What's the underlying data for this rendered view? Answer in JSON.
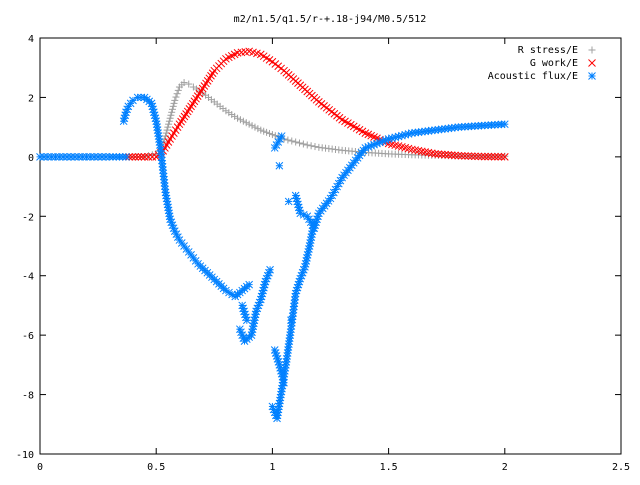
{
  "chart_data": {
    "type": "scatter",
    "title": "m2/n1.5/q1.5/r-+.18-j94/M0.5/512",
    "xlim": [
      0,
      2.5
    ],
    "ylim": [
      -10,
      4
    ],
    "x_ticks": [
      "0",
      "0.5",
      "1",
      "1.5",
      "2",
      "2.5"
    ],
    "y_ticks": [
      "4",
      "2",
      "0",
      "-2",
      "-4",
      "-6",
      "-8",
      "-10"
    ],
    "grid": false,
    "legend_position": "top-right",
    "series": [
      {
        "name": "R stress/E",
        "marker": "plus",
        "color": "#a0a0a0",
        "x": [
          0.37,
          0.4,
          0.45,
          0.5,
          0.52,
          0.54,
          0.56,
          0.58,
          0.6,
          0.62,
          0.64,
          0.66,
          0.7,
          0.75,
          0.8,
          0.85,
          0.9,
          0.95,
          1.0,
          1.05,
          1.1,
          1.15,
          1.2,
          1.3,
          1.4,
          1.5,
          1.6,
          1.7,
          1.8,
          1.9,
          2.0
        ],
        "y": [
          0,
          0,
          0.01,
          0.1,
          0.3,
          0.7,
          1.3,
          1.9,
          2.35,
          2.5,
          2.45,
          2.35,
          2.15,
          1.85,
          1.55,
          1.3,
          1.1,
          0.9,
          0.75,
          0.6,
          0.5,
          0.4,
          0.32,
          0.22,
          0.15,
          0.1,
          0.07,
          0.05,
          0.03,
          0.02,
          0.02
        ]
      },
      {
        "name": "G work/E",
        "marker": "cross",
        "color": "#ff0000",
        "x": [
          0.37,
          0.45,
          0.5,
          0.53,
          0.56,
          0.6,
          0.65,
          0.7,
          0.75,
          0.8,
          0.85,
          0.9,
          0.95,
          1.0,
          1.05,
          1.1,
          1.15,
          1.2,
          1.3,
          1.4,
          1.5,
          1.6,
          1.7,
          1.8,
          1.9,
          2.0
        ],
        "y": [
          0,
          0,
          0,
          0.2,
          0.6,
          1.1,
          1.7,
          2.3,
          2.9,
          3.3,
          3.5,
          3.55,
          3.45,
          3.2,
          2.9,
          2.55,
          2.2,
          1.85,
          1.25,
          0.8,
          0.45,
          0.25,
          0.1,
          0.04,
          0.01,
          0
        ]
      },
      {
        "name": "Acoustic flux/E",
        "marker": "star",
        "color": "#0080ff",
        "x": [
          0.0,
          0.05,
          0.1,
          0.15,
          0.2,
          0.25,
          0.3,
          0.37,
          0.36,
          0.37,
          0.38,
          0.4,
          0.42,
          0.45,
          0.48,
          0.5,
          0.52,
          0.54,
          0.56,
          0.58,
          0.6,
          0.62,
          0.65,
          0.68,
          0.72,
          0.76,
          0.8,
          0.84,
          0.87,
          0.9,
          0.87,
          0.89,
          0.86,
          0.88,
          0.91,
          0.93,
          0.95,
          0.97,
          0.99,
          1.01,
          1.03,
          1.05,
          1.08,
          1.0,
          1.02,
          1.06,
          1.08,
          1.1,
          1.12,
          1.14,
          1.16,
          1.18,
          1.07,
          1.03,
          1.01,
          1.04,
          1.1,
          1.12,
          1.15,
          1.18,
          1.2,
          1.25,
          1.3,
          1.35,
          1.4,
          1.5,
          1.6,
          1.7,
          1.8,
          1.9,
          2.0
        ],
        "y": [
          0,
          0,
          0,
          0,
          0,
          0,
          0,
          0,
          1.2,
          1.5,
          1.7,
          1.9,
          2.0,
          2.0,
          1.8,
          1.2,
          0.2,
          -1.2,
          -2.1,
          -2.5,
          -2.8,
          -3.0,
          -3.3,
          -3.6,
          -3.9,
          -4.2,
          -4.5,
          -4.7,
          -4.5,
          -4.3,
          -5.0,
          -5.5,
          -5.8,
          -6.2,
          -6.0,
          -5.2,
          -4.8,
          -4.2,
          -3.8,
          -6.5,
          -7.0,
          -7.6,
          -5.5,
          -8.4,
          -8.8,
          -6.9,
          -5.8,
          -4.6,
          -4.1,
          -3.7,
          -3.0,
          -2.2,
          -1.5,
          -0.3,
          0.3,
          0.7,
          -1.3,
          -1.9,
          -2.0,
          -2.4,
          -1.9,
          -1.4,
          -0.7,
          -0.2,
          0.3,
          0.6,
          0.8,
          0.9,
          1.0,
          1.05,
          1.1
        ]
      }
    ]
  }
}
